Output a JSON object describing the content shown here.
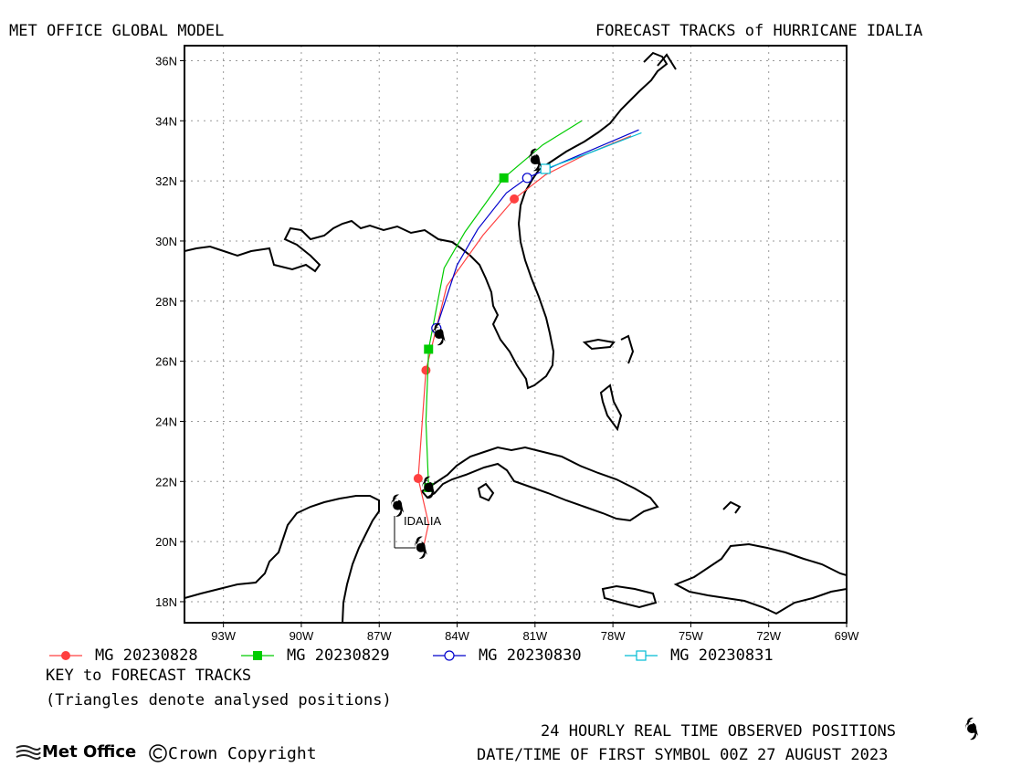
{
  "header": {
    "left_title": "MET OFFICE GLOBAL MODEL",
    "right_title": "FORECAST TRACKS of HURRICANE IDALIA"
  },
  "map": {
    "lon_range": [
      -94.5,
      -69
    ],
    "lat_range": [
      17.3,
      36.5
    ],
    "lat_ticks": [
      "18N",
      "20N",
      "22N",
      "24N",
      "26N",
      "28N",
      "30N",
      "32N",
      "34N",
      "36N"
    ],
    "lon_ticks": [
      "93W",
      "90W",
      "87W",
      "84W",
      "81W",
      "78W",
      "75W",
      "72W",
      "69W"
    ],
    "storm_label": "IDALIA",
    "grid": true
  },
  "chart_data": {
    "type": "line",
    "title": "FORECAST TRACKS of HURRICANE IDALIA",
    "xlabel": "",
    "ylabel": "",
    "xlim": [
      -94.5,
      -69
    ],
    "ylim": [
      17.3,
      36.5
    ],
    "observed": [
      {
        "lon": -85.4,
        "lat": 19.8
      },
      {
        "lon": -86.3,
        "lat": 21.2
      },
      {
        "lon": -85.1,
        "lat": 21.8
      },
      {
        "lon": -84.7,
        "lat": 26.9
      },
      {
        "lon": -81.0,
        "lat": 32.7
      }
    ],
    "series": [
      {
        "name": "MG 20230828",
        "color": "#ff4040",
        "marker": "dot",
        "points": [
          [
            -85.3,
            19.8
          ],
          [
            -85.1,
            20.6
          ],
          [
            -85.5,
            22.1
          ],
          [
            -85.2,
            25.7
          ],
          [
            -84.4,
            28.5
          ],
          [
            -83.0,
            30.2
          ],
          [
            -81.8,
            31.4
          ],
          [
            -80.6,
            32.2
          ],
          [
            -79.0,
            32.9
          ],
          [
            -77.3,
            33.5
          ]
        ],
        "marked": [
          [
            -85.5,
            22.1
          ],
          [
            -85.2,
            25.7
          ],
          [
            -81.8,
            31.4
          ]
        ]
      },
      {
        "name": "MG 20230829",
        "color": "#00cc00",
        "marker": "square",
        "points": [
          [
            -85.1,
            21.8
          ],
          [
            -85.2,
            24.0
          ],
          [
            -85.1,
            26.4
          ],
          [
            -84.5,
            29.1
          ],
          [
            -83.7,
            30.3
          ],
          [
            -82.2,
            32.1
          ],
          [
            -80.7,
            33.2
          ],
          [
            -79.2,
            34.0
          ]
        ],
        "marked": [
          [
            -85.1,
            21.8
          ],
          [
            -85.1,
            26.4
          ],
          [
            -82.2,
            32.1
          ]
        ]
      },
      {
        "name": "MG 20230830",
        "color": "#0000cc",
        "marker": "circle",
        "points": [
          [
            -84.8,
            27.1
          ],
          [
            -84.0,
            29.2
          ],
          [
            -83.2,
            30.4
          ],
          [
            -82.1,
            31.6
          ],
          [
            -81.3,
            32.1
          ],
          [
            -80.0,
            32.6
          ],
          [
            -77.0,
            33.7
          ]
        ],
        "marked": [
          [
            -84.8,
            27.1
          ],
          [
            -81.3,
            32.1
          ]
        ]
      },
      {
        "name": "MG 20230831",
        "color": "#00bcd4",
        "marker": "open-square",
        "points": [
          [
            -81.0,
            32.7
          ],
          [
            -80.6,
            32.4
          ],
          [
            -79.0,
            32.9
          ],
          [
            -76.9,
            33.6
          ]
        ],
        "marked": [
          [
            -80.6,
            32.4
          ]
        ]
      }
    ],
    "legend_position": "bottom"
  },
  "legend": {
    "items": [
      {
        "label": "MG 20230828",
        "color": "#ff4040",
        "marker": "dot"
      },
      {
        "label": "MG 20230829",
        "color": "#00cc00",
        "marker": "square"
      },
      {
        "label": "MG 20230830",
        "color": "#0000cc",
        "marker": "circle"
      },
      {
        "label": "MG 20230831",
        "color": "#00bcd4",
        "marker": "open-square"
      }
    ],
    "key_title": "KEY to FORECAST TRACKS",
    "key_note": "(Triangles denote analysed positions)"
  },
  "footer": {
    "logo_text": "Met Office",
    "copyright": "Crown Copyright",
    "observed_note": "24 HOURLY REAL TIME OBSERVED POSITIONS",
    "first_symbol": "DATE/TIME OF FIRST SYMBOL 00Z 27 AUGUST 2023"
  }
}
